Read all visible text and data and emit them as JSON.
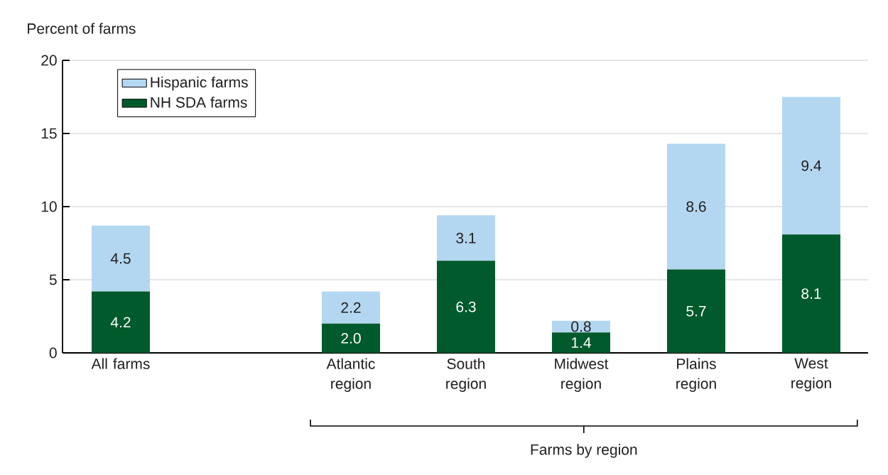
{
  "chart_data": {
    "type": "bar",
    "stacked": true,
    "legend": "top left",
    "grid": "y",
    "ylabel": "Percent of farms",
    "xlabel": "Farms by region",
    "categories": [
      "All farms",
      null,
      "Atlantic region",
      "South region",
      "Midwest region",
      "Plains region",
      "West region"
    ],
    "series": [
      {
        "name": "NH SDA farms",
        "color": "#005a2b",
        "values": [
          4.2,
          null,
          2.0,
          6.3,
          1.4,
          5.7,
          8.1
        ],
        "value_labels": [
          "4.2",
          null,
          "2.0",
          "6.3",
          "1.4",
          "5.7",
          "8.1"
        ]
      },
      {
        "name": "Hispanic farms",
        "color": "#b3d7f0",
        "values": [
          4.5,
          null,
          2.2,
          3.1,
          0.8,
          8.6,
          9.4
        ],
        "value_labels": [
          "4.5",
          null,
          "2.2",
          "3.1",
          "0.8",
          "8.6",
          "9.4"
        ]
      }
    ],
    "ylim": [
      0,
      20
    ],
    "yticks": [
      0,
      5,
      10,
      15,
      20
    ]
  }
}
